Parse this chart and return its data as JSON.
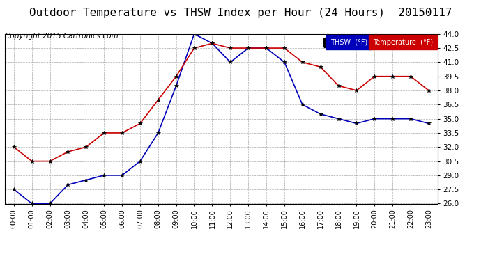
{
  "title": "Outdoor Temperature vs THSW Index per Hour (24 Hours)  20150117",
  "copyright": "Copyright 2015 Cartronics.com",
  "x_labels": [
    "00:00",
    "01:00",
    "02:00",
    "03:00",
    "04:00",
    "05:00",
    "06:00",
    "07:00",
    "08:00",
    "09:00",
    "10:00",
    "11:00",
    "12:00",
    "13:00",
    "14:00",
    "15:00",
    "16:00",
    "17:00",
    "18:00",
    "19:00",
    "20:00",
    "21:00",
    "22:00",
    "23:00"
  ],
  "thsw": [
    27.5,
    26.0,
    26.0,
    28.0,
    28.5,
    29.0,
    29.0,
    30.5,
    33.5,
    38.5,
    44.0,
    43.0,
    41.0,
    42.5,
    42.5,
    41.0,
    36.5,
    35.5,
    35.0,
    34.5,
    35.0,
    35.0,
    35.0,
    34.5
  ],
  "temperature": [
    32.0,
    30.5,
    30.5,
    31.5,
    32.0,
    33.5,
    33.5,
    34.5,
    37.0,
    39.5,
    42.5,
    43.0,
    42.5,
    42.5,
    42.5,
    42.5,
    41.0,
    40.5,
    38.5,
    38.0,
    39.5,
    39.5,
    39.5,
    38.0
  ],
  "thsw_color": "#0000bb",
  "temp_color": "#cc0000",
  "bg_color": "#ffffff",
  "grid_color": "#aaaaaa",
  "ylim_min": 26.0,
  "ylim_max": 44.0,
  "ytick_interval": 1.5,
  "title_fontsize": 11.5,
  "copyright_fontsize": 7.5
}
